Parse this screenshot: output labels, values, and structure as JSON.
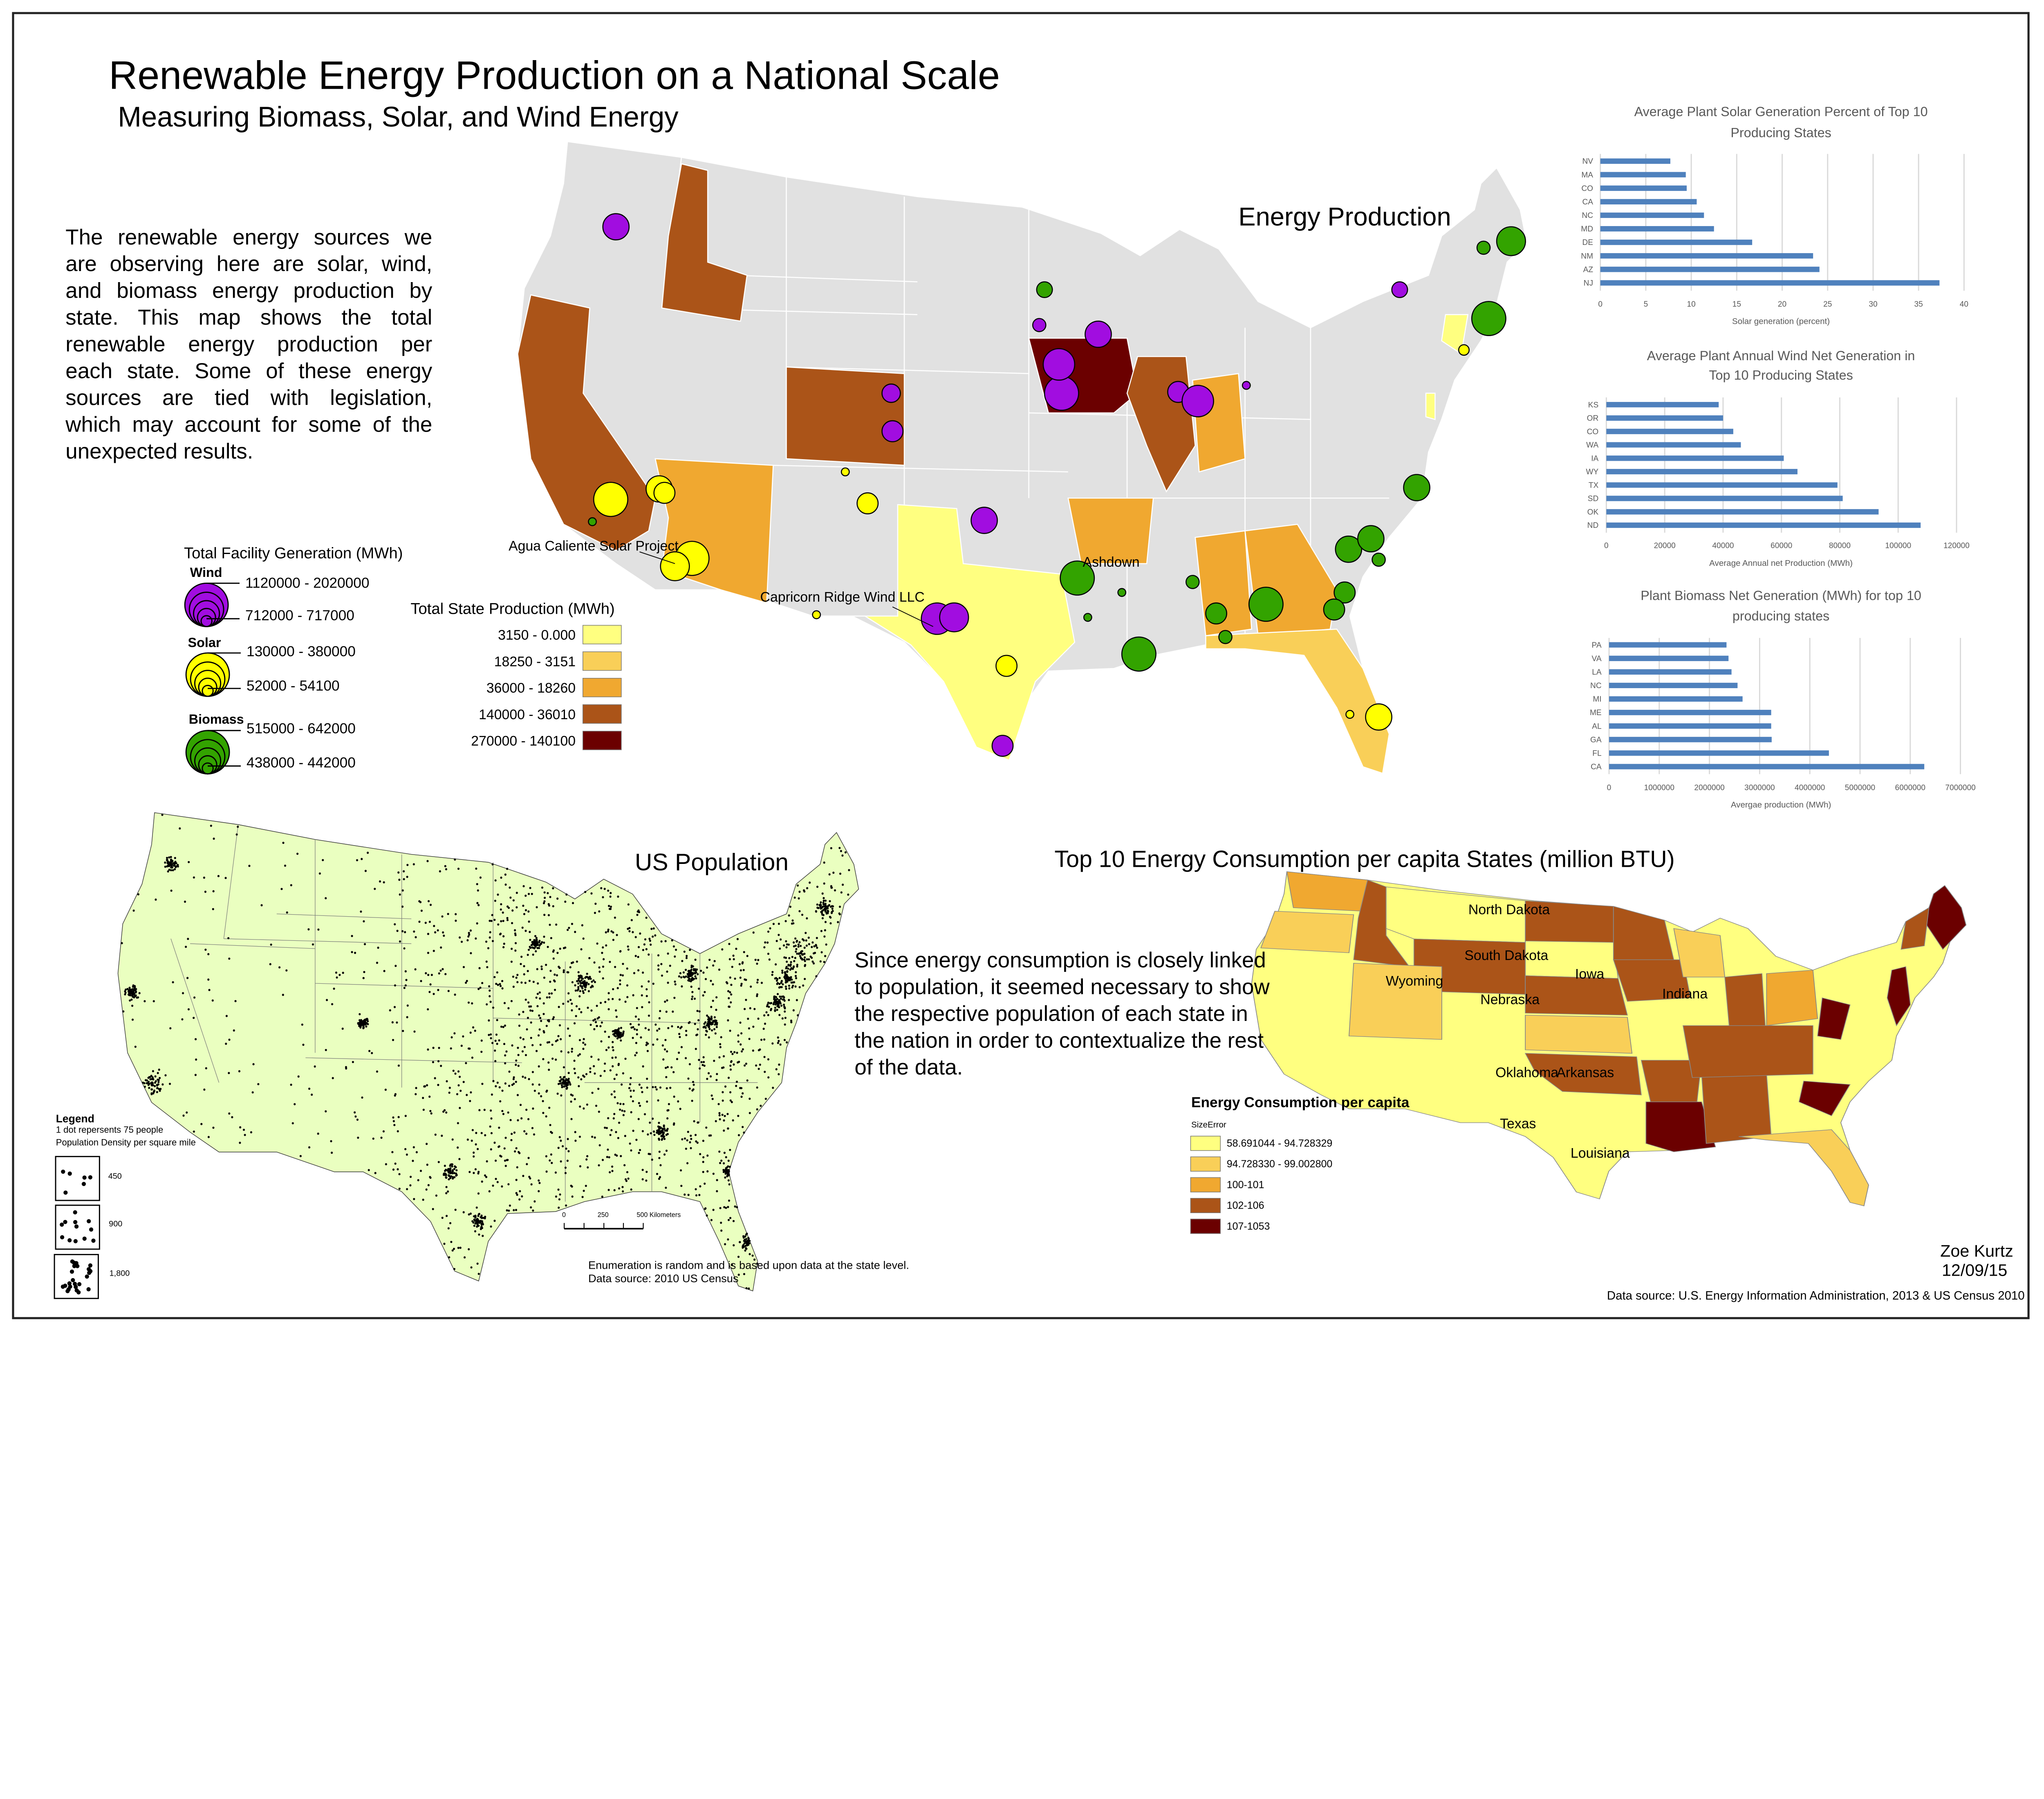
{
  "header": {
    "title": "Renewable Energy Production on a National Scale",
    "subtitle": "Measuring Biomass, Solar, and Wind Energy"
  },
  "intro_text": "The renewable energy sources we are observing here are solar, wind, and biomass energy production by state. This map shows the total renewable energy production per each state. Some of these energy sources are tied with legislation, which may account for some of the unexpected results.",
  "energy_map": {
    "title": "Energy Production",
    "annotations": {
      "agua_caliente": "Agua Caliente Solar Project",
      "capricorn_ridge": "Capricorn Ridge Wind LLC",
      "ashdown": "Ashdown"
    },
    "base_color": "#e1e1e1"
  },
  "facility_legend": {
    "title": "Total Facility Generation (MWh)",
    "wind": {
      "label": "Wind",
      "max_range": "1120000 - 2020000",
      "min_range": "712000 - 717000",
      "color": "#a10de0"
    },
    "solar": {
      "label": "Solar",
      "max_range": "130000 - 380000",
      "min_range": "52000 - 54100",
      "color": "#ffff00"
    },
    "biomass": {
      "label": "Biomass",
      "max_range": "515000 - 642000",
      "min_range": "438000 - 442000",
      "color": "#33a300"
    }
  },
  "state_legend": {
    "title": "Total State Production (MWh)",
    "classes": [
      {
        "label": "3150 - 0.000",
        "color": "#ffff80"
      },
      {
        "label": "18250 - 3151",
        "color": "#f9cf58"
      },
      {
        "label": "36000 - 18260",
        "color": "#f0a830"
      },
      {
        "label": "140000 - 36010",
        "color": "#ab5418"
      },
      {
        "label": "270000 - 140100",
        "color": "#6b0000"
      }
    ]
  },
  "population_map": {
    "title": "US Population",
    "fill_color": "#eaffc0",
    "legend": {
      "heading": "Legend",
      "dot_note": "1 dot repersents 75 people",
      "density_label": "Population Density per square mile",
      "classes": [
        "450",
        "900",
        "1,800"
      ]
    },
    "scale_bar": {
      "tick_0": "0",
      "tick_1": "250",
      "tick_2": "500 Kilometers"
    },
    "notes": [
      "Enumeration is random and is based upon data at the state level.",
      "Data source: 2010 US Census"
    ]
  },
  "consumption": {
    "title": "Top 10 Energy Consumption per capita States (million BTU)",
    "paragraph": "Since energy consumption is closely linked to population, it seemed necessary to show the respective population of each state in the nation in order to contextualize the rest of the data.",
    "state_labels": {
      "north_dakota": "North Dakota",
      "south_dakota": "South Dakota",
      "wyoming": "Wyoming",
      "nebraska": "Nebraska",
      "iowa": "Iowa",
      "indiana": "Indiana",
      "oklahoma": "Oklahoma",
      "arkansas": "Arkansas",
      "texas": "Texas",
      "louisiana": "Louisiana"
    },
    "legend": {
      "title": "Energy Consumption per capita",
      "field": "SizeError",
      "classes": [
        {
          "label": "58.691044 - 94.728329",
          "color": "#ffff80"
        },
        {
          "label": "94.728330 - 99.002800",
          "color": "#f9cf58"
        },
        {
          "label": "100-101",
          "color": "#f0a830"
        },
        {
          "label": "102-106",
          "color": "#ab5418"
        },
        {
          "label": "107-1053",
          "color": "#6b0000"
        }
      ]
    }
  },
  "credits": {
    "author": "Zoe Kurtz",
    "date": "12/09/15",
    "source": "Data source: U.S. Energy Information Administration, 2013 & US Census 2010"
  },
  "chart_data": [
    {
      "type": "bar",
      "orientation": "horizontal",
      "title_lines": [
        "Average Plant Solar Generation Percent of Top 10",
        "Producing States"
      ],
      "categories": [
        "NV",
        "MA",
        "CO",
        "CA",
        "NC",
        "MD",
        "DE",
        "NM",
        "AZ",
        "NJ"
      ],
      "values": [
        7.7,
        9.4,
        9.5,
        10.6,
        11.4,
        12.5,
        16.7,
        23.4,
        24.1,
        37.3
      ],
      "xlabel": "Solar generation (percent)",
      "xlim": [
        0,
        40
      ],
      "xticks": [
        "0",
        "5",
        "10",
        "15",
        "20",
        "25",
        "30",
        "35",
        "40"
      ],
      "grid": true,
      "bar_color": "#4f81bd"
    },
    {
      "type": "bar",
      "orientation": "horizontal",
      "title_lines": [
        "Average Plant Annual Wind Net Generation in",
        "Top 10 Producing States"
      ],
      "categories": [
        "KS",
        "OR",
        "CO",
        "WA",
        "IA",
        "WY",
        "TX",
        "SD",
        "OK",
        "ND"
      ],
      "values": [
        38500,
        40000,
        43500,
        46100,
        60800,
        65500,
        79200,
        81000,
        93300,
        107700
      ],
      "xlabel": "Average Annual net Production (MWh)",
      "xlim": [
        0,
        120000
      ],
      "xticks": [
        "0",
        "20000",
        "40000",
        "60000",
        "80000",
        "100000",
        "120000"
      ],
      "grid": true,
      "bar_color": "#4f81bd"
    },
    {
      "type": "bar",
      "orientation": "horizontal",
      "title_lines": [
        "Plant Biomass Net Generation (MWh) for top 10",
        "producing states"
      ],
      "categories": [
        "PA",
        "VA",
        "LA",
        "NC",
        "MI",
        "ME",
        "AL",
        "GA",
        "FL",
        "CA"
      ],
      "values": [
        2340000,
        2380000,
        2440000,
        2560000,
        2660000,
        3230000,
        3230000,
        3240000,
        4380000,
        6280000
      ],
      "xlabel": "Avergae production (MWh)",
      "xlim": [
        0,
        7000000
      ],
      "xticks": [
        "0",
        "1000000",
        "2000000",
        "3000000",
        "4000000",
        "5000000",
        "6000000",
        "7000000"
      ],
      "grid": true,
      "bar_color": "#4f81bd"
    }
  ]
}
